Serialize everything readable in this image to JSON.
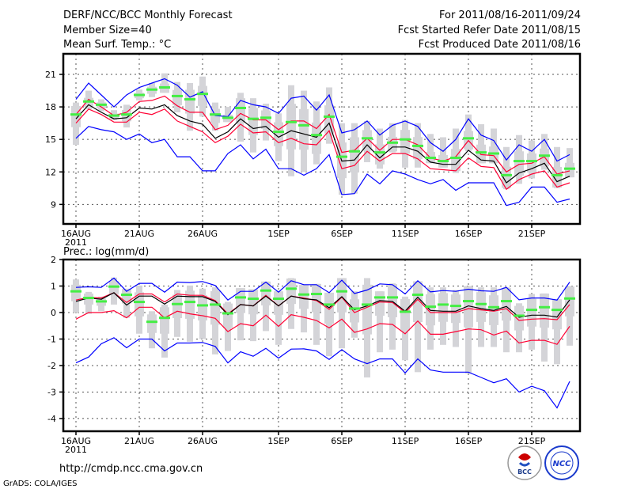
{
  "header": {
    "title": "DERF/NCC/BCC Monthly Forecast",
    "member_size": "Member Size=40",
    "variable": "Mean Surf. Temp.: °C",
    "period": "For 2011/08/16-2011/09/24",
    "started": "Fcst Started Refer Date 2011/08/15",
    "produced": "Fcst Produced Date 2011/08/16"
  },
  "footer": {
    "url": "http://cmdp.ncc.cma.gov.cn",
    "grads": "GrADS: COLA/IGES",
    "logo_bcc": "BCC",
    "logo_ncc": "NCC"
  },
  "colors": {
    "max_min": "#0000ff",
    "quartile": "#ff0033",
    "median": "#000000",
    "mean": "#44ee44",
    "spread": "#d4d4d8"
  },
  "chart_data": [
    {
      "type": "line",
      "title": "Mean Surf. Temp.: °C",
      "ylabel": "°C",
      "ylim": [
        7.2,
        22.9
      ],
      "yticks": [
        9,
        12,
        15,
        18,
        21
      ],
      "xtick_labels": [
        "16AUG",
        "21AUG",
        "26AUG",
        "1SEP",
        "6SEP",
        "11SEP",
        "16SEP",
        "21SEP"
      ],
      "xtick_days": [
        0,
        5,
        10,
        16,
        21,
        26,
        31,
        36
      ],
      "year_label": "2011",
      "grid": true,
      "days": 40,
      "series": [
        {
          "name": "max",
          "color": "#0000ff",
          "values": [
            18.7,
            20.2,
            19.1,
            18.0,
            19.1,
            19.8,
            20.2,
            20.6,
            20.0,
            18.9,
            19.4,
            17.2,
            17.1,
            18.6,
            18.2,
            18.0,
            17.4,
            18.8,
            19.0,
            17.7,
            19.1,
            15.6,
            15.9,
            16.7,
            15.4,
            16.3,
            16.7,
            16.2,
            14.7,
            13.9,
            15.0,
            16.9,
            15.4,
            14.9,
            13.1,
            14.5,
            13.9,
            15.0,
            13.0,
            13.6
          ]
        },
        {
          "name": "upper_quartile",
          "color": "#ff0033",
          "values": [
            17.3,
            18.7,
            18.0,
            17.2,
            17.5,
            18.5,
            18.6,
            19.0,
            18.1,
            17.5,
            17.5,
            15.9,
            16.3,
            17.4,
            16.8,
            16.8,
            15.9,
            16.7,
            16.7,
            16.0,
            17.3,
            13.8,
            14.0,
            15.1,
            14.0,
            15.0,
            15.0,
            14.5,
            13.3,
            13.0,
            13.4,
            14.9,
            13.6,
            13.5,
            12.0,
            12.7,
            12.8,
            13.4,
            11.8,
            12.1
          ]
        },
        {
          "name": "median",
          "color": "#000000",
          "values": [
            16.9,
            18.2,
            17.5,
            16.9,
            17.0,
            17.9,
            17.8,
            18.2,
            17.2,
            16.7,
            16.4,
            15.1,
            15.7,
            16.9,
            16.0,
            16.2,
            15.2,
            15.8,
            15.5,
            15.2,
            16.5,
            13.0,
            13.1,
            14.5,
            13.3,
            14.3,
            14.3,
            13.9,
            12.9,
            12.7,
            12.7,
            14.0,
            13.1,
            13.0,
            11.0,
            11.9,
            12.3,
            12.8,
            11.1,
            11.6
          ]
        },
        {
          "name": "lower_quartile",
          "color": "#ff0033",
          "values": [
            16.5,
            17.8,
            17.3,
            16.6,
            16.6,
            17.5,
            17.3,
            17.8,
            16.7,
            16.2,
            15.7,
            14.7,
            15.3,
            16.4,
            15.6,
            15.7,
            14.7,
            15.1,
            14.6,
            14.5,
            15.8,
            12.3,
            12.6,
            13.9,
            13.0,
            13.7,
            13.7,
            13.2,
            12.3,
            12.2,
            12.1,
            13.3,
            12.5,
            12.4,
            10.4,
            11.3,
            11.8,
            12.1,
            10.6,
            11.0
          ]
        },
        {
          "name": "min",
          "color": "#0000ff",
          "values": [
            15.1,
            16.2,
            15.9,
            15.7,
            15.0,
            15.5,
            14.7,
            15.0,
            13.4,
            13.4,
            12.1,
            12.1,
            13.7,
            14.5,
            13.2,
            14.1,
            12.3,
            12.3,
            11.7,
            12.3,
            13.6,
            9.9,
            10.0,
            11.8,
            10.9,
            12.1,
            11.8,
            11.3,
            10.9,
            11.3,
            10.3,
            11.0,
            11.0,
            11.0,
            8.9,
            9.2,
            10.6,
            10.6,
            9.2,
            9.5
          ]
        }
      ],
      "mean_markers": [
        17.3,
        18.5,
        18.2,
        17.2,
        17.3,
        19.1,
        19.6,
        19.8,
        19.0,
        18.7,
        19.2,
        17.3,
        17.0,
        17.9,
        16.9,
        17.0,
        15.7,
        16.6,
        16.3,
        15.4,
        17.1,
        13.4,
        13.9,
        15.1,
        13.8,
        14.7,
        15.0,
        14.4,
        13.3,
        13.0,
        13.3,
        15.1,
        13.8,
        13.7,
        11.7,
        13.0,
        13.0,
        13.5,
        11.7,
        12.3
      ],
      "spread_high": [
        18.4,
        19.5,
        18.7,
        17.7,
        18.2,
        19.6,
        20.2,
        21.1,
        20.3,
        20.2,
        20.8,
        18.4,
        18.0,
        19.3,
        18.8,
        18.3,
        17.4,
        20.0,
        19.5,
        18.5,
        19.8,
        16.5,
        16.5,
        16.7,
        16.0,
        16.5,
        16.8,
        16.5,
        15.5,
        15.2,
        16.0,
        17.3,
        16.4,
        16.0,
        14.3,
        15.4,
        14.9,
        15.5,
        14.3,
        14.2
      ],
      "spread_low": [
        14.5,
        17.8,
        17.6,
        16.8,
        16.1,
        18.6,
        18.9,
        19.3,
        17.5,
        15.8,
        17.1,
        15.8,
        16.6,
        14.8,
        13.8,
        14.9,
        13.0,
        11.6,
        12.0,
        12.7,
        14.6,
        9.9,
        10.0,
        12.9,
        12.3,
        13.8,
        12.4,
        12.4,
        12.8,
        12.4,
        11.9,
        13.9,
        12.8,
        12.8,
        10.4,
        10.9,
        11.4,
        12.2,
        10.5,
        11.5
      ]
    },
    {
      "type": "line",
      "title": "Prec.: log(mm/d)",
      "ylabel": "log(mm/d)",
      "ylim": [
        -4.48,
        2
      ],
      "yticks": [
        -4,
        -3,
        -2,
        -1,
        0,
        1,
        2
      ],
      "xtick_labels": [
        "16AUG",
        "21AUG",
        "26AUG",
        "1SEP",
        "6SEP",
        "11SEP",
        "16SEP",
        "21SEP"
      ],
      "xtick_days": [
        0,
        5,
        10,
        16,
        21,
        26,
        31,
        36
      ],
      "year_label": "2011",
      "grid": true,
      "days": 40,
      "series": [
        {
          "name": "max",
          "color": "#0000ff",
          "values": [
            0.95,
            0.97,
            0.95,
            1.3,
            0.8,
            1.1,
            1.1,
            0.77,
            1.15,
            1.13,
            1.17,
            1.02,
            0.47,
            0.8,
            0.8,
            1.15,
            0.77,
            1.2,
            1.05,
            1.05,
            0.75,
            1.22,
            0.72,
            0.85,
            1.08,
            1.05,
            0.7,
            1.2,
            0.78,
            0.83,
            0.8,
            0.88,
            0.82,
            0.8,
            0.95,
            0.48,
            0.55,
            0.55,
            0.47,
            1.15
          ]
        },
        {
          "name": "upper_quartile",
          "color": "#ff0033",
          "values": [
            0.47,
            0.57,
            0.55,
            0.75,
            0.38,
            0.7,
            0.7,
            0.4,
            0.7,
            0.65,
            0.65,
            0.45,
            -0.05,
            0.3,
            0.25,
            0.65,
            0.25,
            0.62,
            0.55,
            0.45,
            0.12,
            0.58,
            0.0,
            0.2,
            0.4,
            0.38,
            0.0,
            0.5,
            0.0,
            0.0,
            0.0,
            0.15,
            0.1,
            0.05,
            0.15,
            -0.3,
            -0.25,
            -0.23,
            -0.27,
            0.3
          ]
        },
        {
          "name": "median",
          "color": "#000000",
          "values": [
            0.42,
            0.55,
            0.5,
            0.75,
            0.28,
            0.62,
            0.62,
            0.32,
            0.62,
            0.6,
            0.6,
            0.42,
            -0.08,
            0.3,
            0.25,
            0.62,
            0.25,
            0.62,
            0.52,
            0.48,
            0.18,
            0.6,
            0.1,
            0.25,
            0.45,
            0.42,
            0.05,
            0.58,
            0.08,
            0.05,
            0.05,
            0.25,
            0.15,
            0.08,
            0.23,
            -0.18,
            -0.1,
            -0.1,
            -0.17,
            0.48
          ]
        },
        {
          "name": "lower_quartile",
          "color": "#ff0033",
          "values": [
            -0.25,
            0.0,
            0.0,
            0.07,
            -0.2,
            0.2,
            0.2,
            -0.2,
            0.05,
            -0.05,
            -0.12,
            -0.22,
            -0.72,
            -0.42,
            -0.5,
            -0.1,
            -0.52,
            -0.08,
            -0.18,
            -0.3,
            -0.58,
            -0.25,
            -0.75,
            -0.62,
            -0.42,
            -0.45,
            -0.8,
            -0.32,
            -0.82,
            -0.82,
            -0.72,
            -0.62,
            -0.65,
            -0.85,
            -0.7,
            -1.15,
            -1.05,
            -1.05,
            -1.2,
            -0.52
          ]
        },
        {
          "name": "min",
          "color": "#0000ff",
          "values": [
            -1.9,
            -1.68,
            -1.18,
            -0.95,
            -1.33,
            -1.0,
            -1.0,
            -1.45,
            -1.15,
            -1.15,
            -1.13,
            -1.28,
            -1.9,
            -1.48,
            -1.65,
            -1.35,
            -1.72,
            -1.38,
            -1.37,
            -1.45,
            -1.77,
            -1.4,
            -1.75,
            -1.93,
            -1.75,
            -1.75,
            -2.28,
            -1.75,
            -2.17,
            -2.25,
            -2.25,
            -2.25,
            -2.45,
            -2.65,
            -2.5,
            -3.0,
            -2.78,
            -2.95,
            -3.6,
            -2.6
          ]
        }
      ],
      "mean_markers": [
        0.8,
        0.55,
        0.42,
        0.98,
        0.67,
        0.4,
        -0.35,
        -0.2,
        0.32,
        0.4,
        0.27,
        0.3,
        -0.03,
        0.57,
        0.52,
        0.83,
        0.52,
        0.9,
        0.68,
        0.7,
        0.3,
        0.8,
        0.15,
        0.3,
        0.57,
        0.57,
        0.03,
        0.67,
        0.22,
        0.3,
        0.25,
        0.43,
        0.32,
        0.2,
        0.43,
        -0.12,
        0.1,
        0.2,
        0.1,
        0.53
      ],
      "spread_high": [
        1.25,
        0.78,
        0.6,
        1.32,
        0.9,
        1.02,
        0.05,
        0.3,
        0.85,
        1.02,
        0.9,
        0.95,
        0.4,
        0.92,
        0.88,
        1.17,
        0.8,
        1.3,
        1.05,
        1.08,
        0.75,
        1.3,
        0.8,
        1.3,
        0.8,
        1.1,
        0.6,
        1.18,
        0.95,
        0.95,
        0.85,
        1.0,
        0.95,
        0.95,
        0.95,
        0.35,
        0.7,
        0.72,
        0.5,
        1.0
      ],
      "spread_low": [
        0,
        -0.05,
        0.05,
        0.3,
        -0.2,
        -0.8,
        -1.35,
        -1.7,
        -0.92,
        -1.1,
        -1.0,
        -1.58,
        -1.45,
        -1.05,
        -1.08,
        -0.7,
        -1.22,
        -0.62,
        -0.75,
        -1.22,
        -1.65,
        -1.35,
        -0.95,
        -2.45,
        -1.5,
        -1.4,
        -1.8,
        -2.25,
        -1.4,
        -1.22,
        -1.3,
        -2.3,
        -1.3,
        -1.3,
        -1.5,
        -1.5,
        -1.4,
        -1.85,
        -1.95,
        -1.25
      ]
    }
  ]
}
